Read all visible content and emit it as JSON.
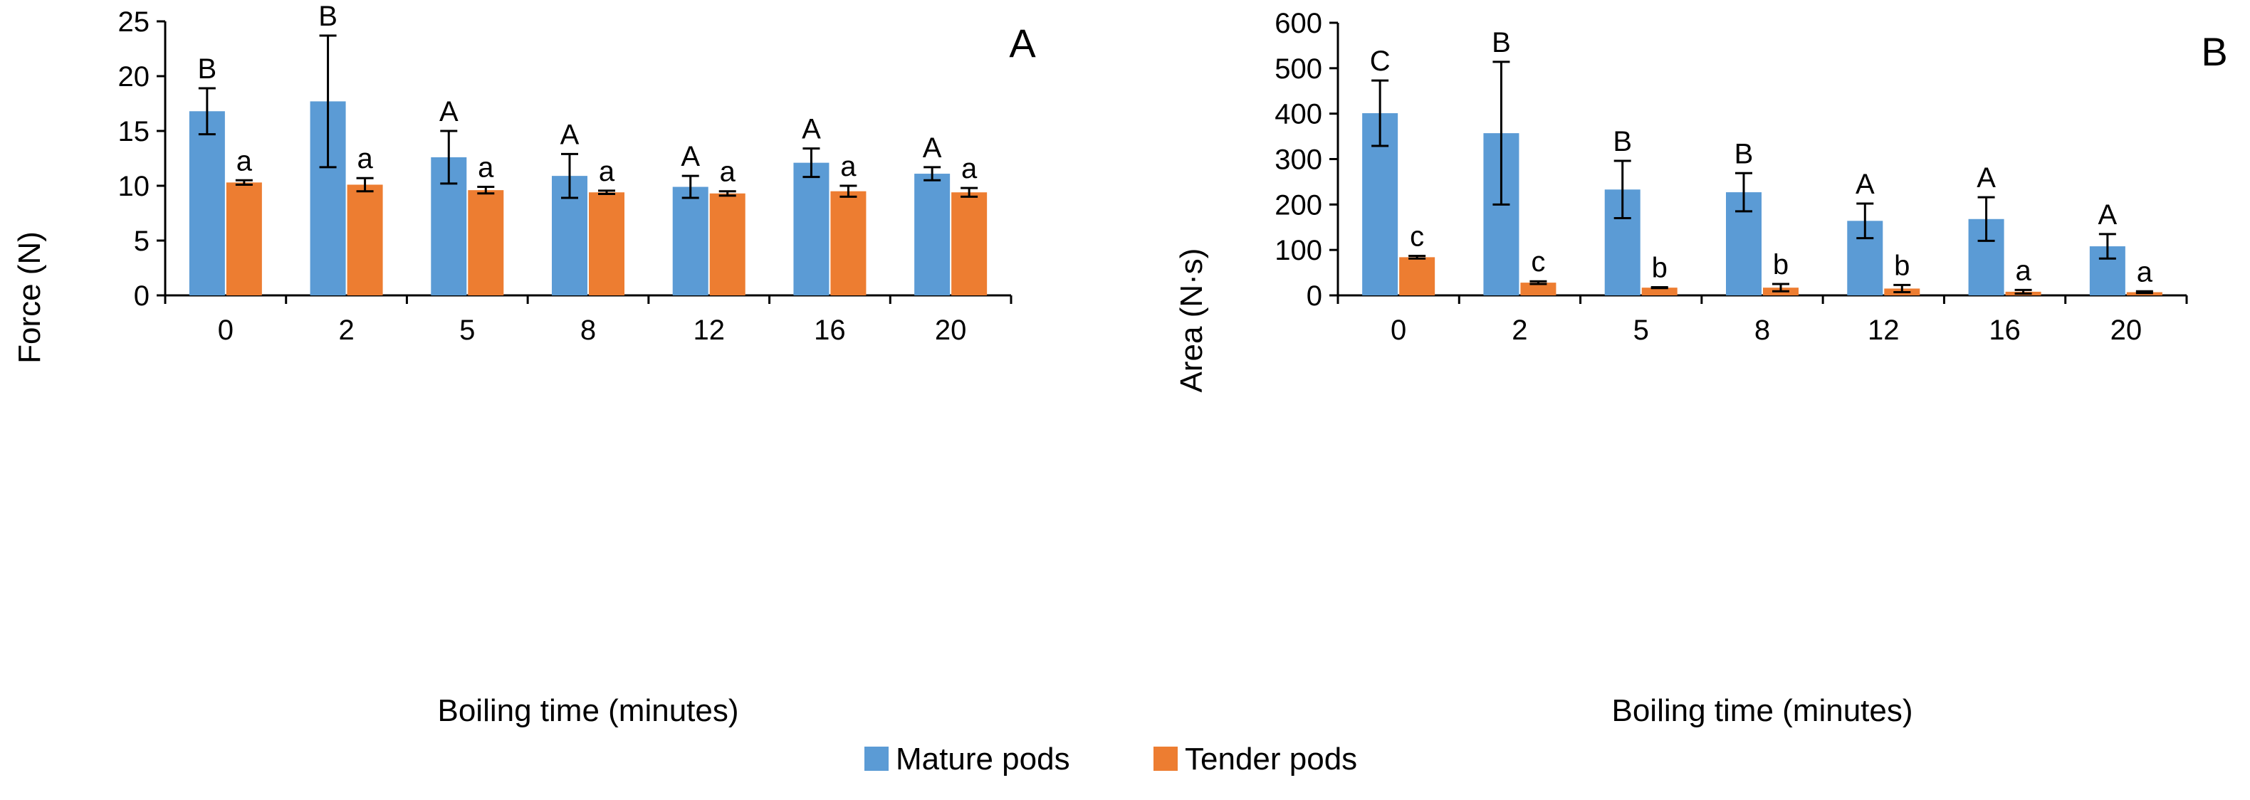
{
  "colors": {
    "mature": "#5b9bd5",
    "tender": "#ed7d31",
    "axis": "#000000",
    "error": "#000000"
  },
  "legend": [
    {
      "key": "mature",
      "label": "Mature pods"
    },
    {
      "key": "tender",
      "label": "Tender pods"
    }
  ],
  "chart_data": [
    {
      "type": "bar",
      "panel_label": "A",
      "title": "",
      "xlabel": "Boiling time (minutes)",
      "ylabel": "Force (N)",
      "categories": [
        "0",
        "2",
        "5",
        "8",
        "12",
        "16",
        "20"
      ],
      "ylim": [
        0,
        25
      ],
      "yticks": [
        "0",
        "5",
        "10",
        "15",
        "20",
        "25"
      ],
      "grid": false,
      "legend_position": "bottom",
      "series": [
        {
          "name": "Mature pods",
          "key": "mature",
          "values": [
            16.8,
            17.7,
            12.6,
            10.9,
            9.9,
            12.1,
            11.1
          ],
          "errors": [
            2.1,
            6.0,
            2.4,
            2.0,
            1.0,
            1.3,
            0.6
          ],
          "letters": [
            "B",
            "B",
            "A",
            "A",
            "A",
            "A",
            "A"
          ]
        },
        {
          "name": "Tender pods",
          "key": "tender",
          "values": [
            10.3,
            10.1,
            9.6,
            9.4,
            9.3,
            9.5,
            9.4
          ],
          "errors": [
            0.2,
            0.6,
            0.3,
            0.15,
            0.2,
            0.5,
            0.4
          ],
          "letters": [
            "a",
            "a",
            "a",
            "a",
            "a",
            "a",
            "a"
          ]
        }
      ]
    },
    {
      "type": "bar",
      "panel_label": "B",
      "title": "",
      "xlabel": "Boiling time (minutes)",
      "ylabel": "Area (N·s)",
      "categories": [
        "0",
        "2",
        "5",
        "8",
        "12",
        "16",
        "20"
      ],
      "ylim": [
        0,
        600
      ],
      "yticks": [
        "0",
        "100",
        "200",
        "300",
        "400",
        "500",
        "600"
      ],
      "grid": false,
      "legend_position": "bottom",
      "series": [
        {
          "name": "Mature pods",
          "key": "mature",
          "values": [
            401,
            357,
            233,
            227,
            164,
            168,
            108
          ],
          "errors": [
            72,
            157,
            63,
            42,
            38,
            48,
            27
          ],
          "letters": [
            "C",
            "B",
            "B",
            "B",
            "A",
            "A",
            "A"
          ]
        },
        {
          "name": "Tender pods",
          "key": "tender",
          "values": [
            84,
            28,
            17,
            17,
            15,
            8,
            7
          ],
          "errors": [
            3,
            3,
            1,
            8,
            8,
            4,
            2
          ],
          "letters": [
            "c",
            "c",
            "b",
            "b",
            "b",
            "a",
            "a"
          ]
        }
      ]
    }
  ]
}
